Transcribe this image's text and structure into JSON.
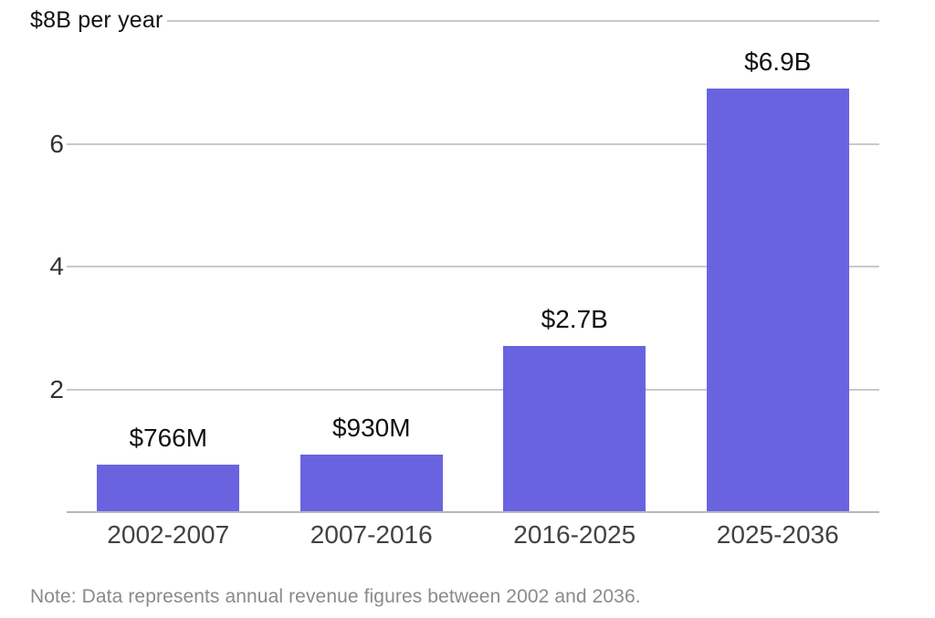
{
  "chart_data": {
    "type": "bar",
    "title": "$8B per year",
    "categories": [
      "2002-2007",
      "2007-2016",
      "2016-2025",
      "2025-2036"
    ],
    "values": [
      0.766,
      0.93,
      2.7,
      6.9
    ],
    "bar_labels": [
      "$766M",
      "$930M",
      "$2.7B",
      "$6.9B"
    ],
    "yticks": [
      2,
      4,
      6
    ],
    "ylim": [
      0,
      8
    ],
    "y_top_label_value": 8,
    "grid": true,
    "legend": "none",
    "note": "Note: Data represents annual revenue figures between 2002 and 2036.",
    "colors": {
      "bar": "#6a63e0",
      "gridline": "#c9c9c9",
      "axis_line": "#b7b7b7",
      "value_label": "#111111",
      "tick_label": "#333333",
      "category_label": "#424242",
      "note_text": "#8a8a8a",
      "background": "#ffffff"
    }
  }
}
